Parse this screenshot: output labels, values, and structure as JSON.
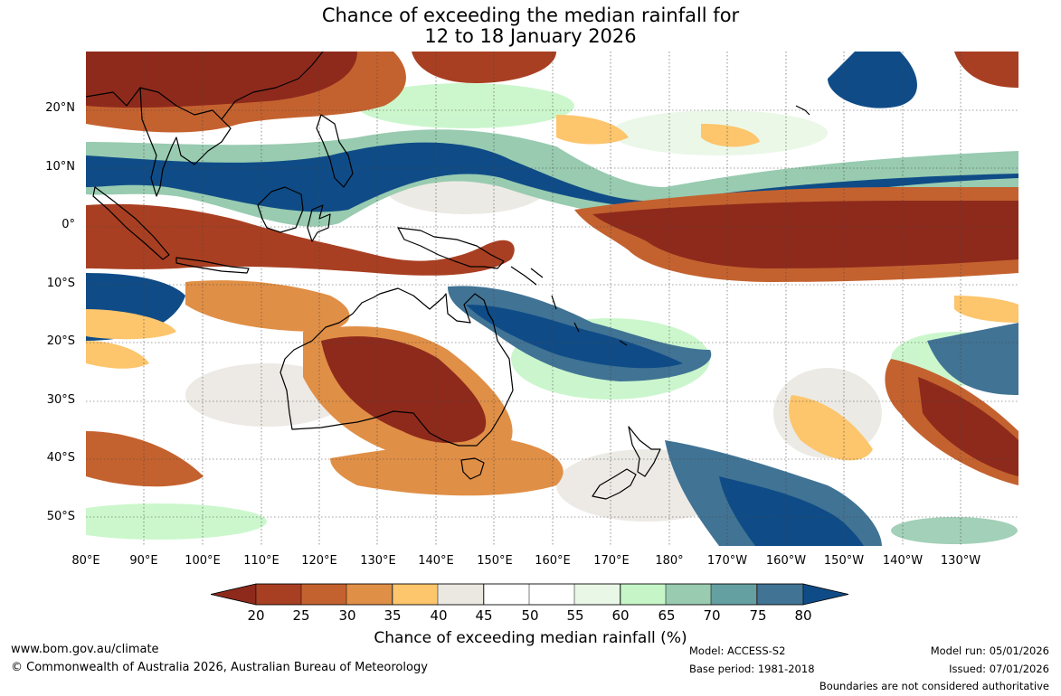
{
  "title_line1": "Chance of exceeding the median rainfall for",
  "title_line2": "12 to 18 January 2026",
  "lat_labels": [
    "20°N",
    "10°N",
    "0°",
    "10°S",
    "20°S",
    "30°S",
    "40°S",
    "50°S"
  ],
  "lon_labels": [
    "80°E",
    "90°E",
    "100°E",
    "110°E",
    "120°E",
    "130°E",
    "140°E",
    "150°E",
    "160°E",
    "170°E",
    "180°",
    "170°W",
    "160°W",
    "150°W",
    "140°W",
    "130°W"
  ],
  "colorbar": {
    "ticks": [
      "20",
      "25",
      "30",
      "35",
      "40",
      "45",
      "50",
      "55",
      "60",
      "65",
      "70",
      "75",
      "80"
    ],
    "colors": [
      "#8e2a1c",
      "#a93f22",
      "#c4622f",
      "#e08f46",
      "#fdc56c",
      "#ebe8e2",
      "#ffffff",
      "#ffffff",
      "#e9f7e6",
      "#c6f6c8",
      "#98cbb0",
      "#649fa2",
      "#417394",
      "#0f4c87"
    ],
    "label": "Chance of exceeding median rainfall (%)"
  },
  "footer": {
    "website": "www.bom.gov.au/climate",
    "copyright": "© Commonwealth of Australia 2026, Australian Bureau of Meteorology",
    "model": "Model: ACCESS-S2",
    "base_period": "Base period: 1981-2018",
    "model_run": "Model run: 05/01/2026",
    "issued": "Issued: 07/01/2026",
    "boundaries": "Boundaries are not considered authoritative"
  }
}
